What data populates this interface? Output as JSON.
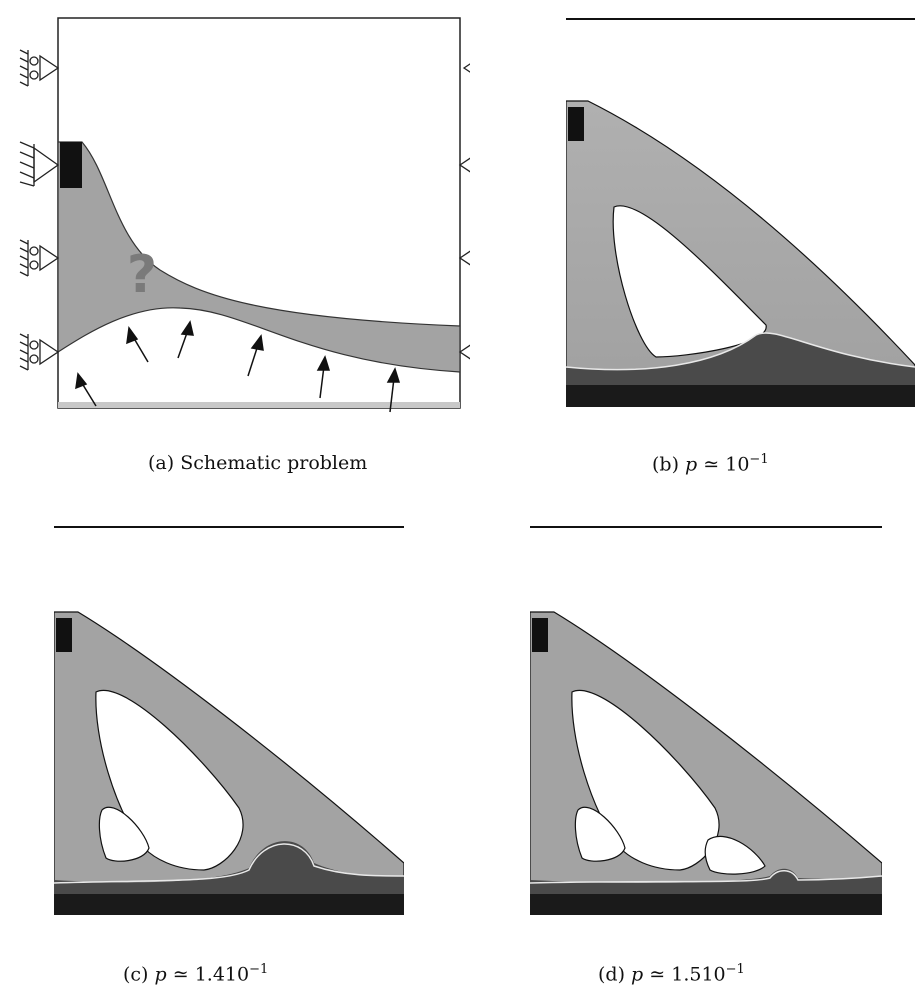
{
  "figure": {
    "panels": [
      {
        "id": "a",
        "caption_label": "(a)",
        "caption_text": "Schematic problem",
        "question_mark": "?"
      },
      {
        "id": "b",
        "caption_label": "(b)",
        "caption_var": "p",
        "caption_rel": "≃",
        "caption_mantissa": "",
        "caption_base": "10",
        "caption_exp": "−1"
      },
      {
        "id": "c",
        "caption_label": "(c)",
        "caption_var": "p",
        "caption_rel": "≃",
        "caption_mantissa": "1.4",
        "caption_base": "10",
        "caption_exp": "−1"
      },
      {
        "id": "d",
        "caption_label": "(d)",
        "caption_var": "p",
        "caption_rel": "≃",
        "caption_mantissa": "1.5",
        "caption_base": "10",
        "caption_exp": "−1"
      }
    ],
    "colors": {
      "material_gray": "#a3a3a3",
      "void": "#ffffff",
      "dark_base": "#1a1a1a",
      "mound": "#4a4a4a",
      "outline": "#111111",
      "interface_line": "#e8e8e8",
      "support_block": "#111111"
    }
  }
}
